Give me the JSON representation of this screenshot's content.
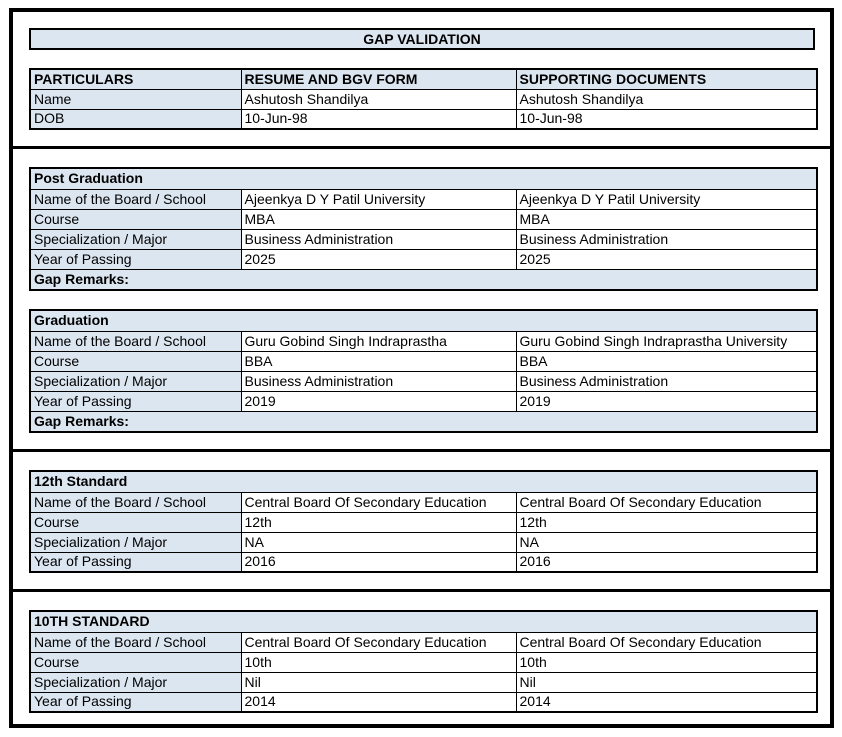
{
  "title": "GAP VALIDATION",
  "colors": {
    "header_fill": "#dce6f1",
    "border": "#000000"
  },
  "particulars_table": {
    "headers": [
      "PARTICULARS",
      "RESUME AND BGV FORM",
      "SUPPORTING DOCUMENTS"
    ],
    "rows": [
      {
        "label": "Name",
        "resume": "Ashutosh Shandilya",
        "supporting": "Ashutosh Shandilya"
      },
      {
        "label": "DOB",
        "resume": "10-Jun-98",
        "supporting": "10-Jun-98"
      }
    ]
  },
  "sections": [
    {
      "title": "Post Graduation",
      "rows": [
        {
          "label": "Name of the Board / School",
          "resume": "Ajeenkya D Y Patil University",
          "supporting": "Ajeenkya D Y Patil University"
        },
        {
          "label": "Course",
          "resume": "MBA",
          "supporting": "MBA"
        },
        {
          "label": "Specialization / Major",
          "resume": "Business Administration",
          "supporting": "Business Administration"
        },
        {
          "label": "Year of Passing",
          "resume": "2025",
          "supporting": "2025"
        }
      ],
      "gap_remarks_label": "Gap Remarks:",
      "divider_after": false
    },
    {
      "title": "Graduation",
      "rows": [
        {
          "label": "Name of the Board / School",
          "resume": "Guru Gobind Singh Indraprastha",
          "supporting": "Guru Gobind Singh Indraprastha University"
        },
        {
          "label": "Course",
          "resume": "BBA",
          "supporting": "BBA"
        },
        {
          "label": "Specialization / Major",
          "resume": "Business Administration",
          "supporting": "Business Administration"
        },
        {
          "label": "Year of Passing",
          "resume": "2019",
          "supporting": "2019"
        }
      ],
      "gap_remarks_label": "Gap Remarks:",
      "divider_after": true
    },
    {
      "title": "12th Standard",
      "rows": [
        {
          "label": "Name of the Board / School",
          "resume": "Central Board Of Secondary Education",
          "supporting": "Central Board Of Secondary Education"
        },
        {
          "label": "Course",
          "resume": "12th",
          "supporting": "12th"
        },
        {
          "label": "Specialization / Major",
          "resume": "NA",
          "supporting": "NA"
        },
        {
          "label": "Year of Passing",
          "resume": "2016",
          "supporting": "2016"
        }
      ],
      "gap_remarks_label": null,
      "divider_after": true
    },
    {
      "title": "10TH STANDARD",
      "rows": [
        {
          "label": "Name of the Board / School",
          "resume": "Central Board Of Secondary Education",
          "supporting": "Central Board Of Secondary Education"
        },
        {
          "label": "Course",
          "resume": "10th",
          "supporting": "10th"
        },
        {
          "label": "Specialization / Major",
          "resume": "Nil",
          "supporting": "Nil"
        },
        {
          "label": "Year of Passing",
          "resume": "2014",
          "supporting": "2014"
        }
      ],
      "gap_remarks_label": null,
      "divider_after": false
    }
  ]
}
